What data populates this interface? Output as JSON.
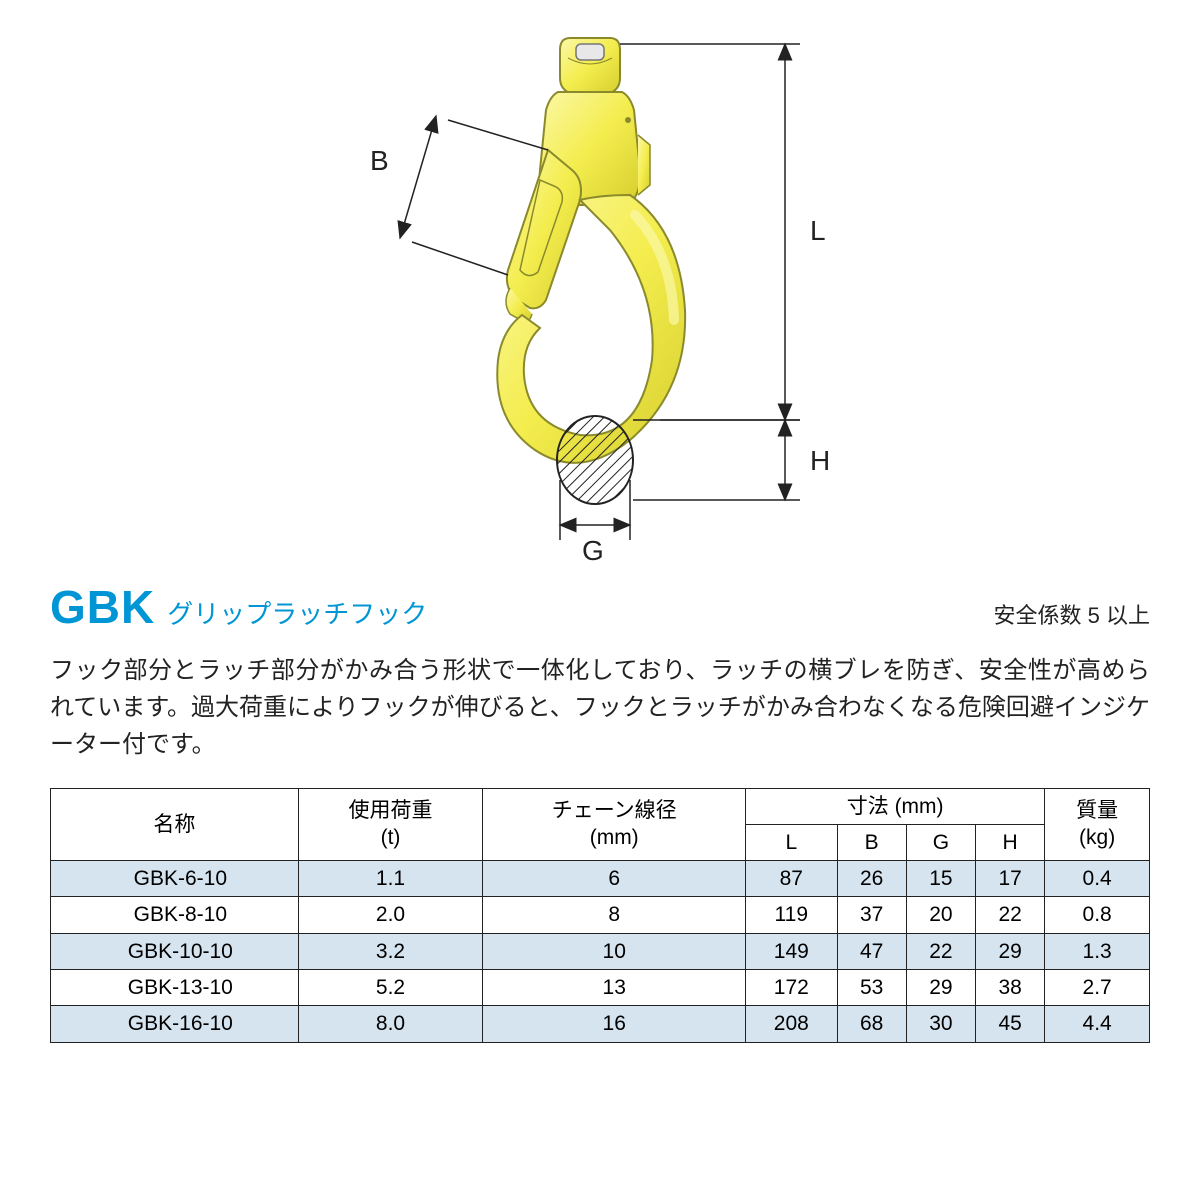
{
  "diagram": {
    "labels": {
      "B": "B",
      "L": "L",
      "H": "H",
      "G": "G"
    },
    "hook_fill": "#f4ed4e",
    "hook_stroke": "#8a8a2c",
    "hook_highlight": "#fbf8a8",
    "dimension_line_color": "#222222",
    "hatch_color": "#222222"
  },
  "title": {
    "code": "GBK",
    "name": "グリップラッチフック",
    "safety": "安全係数 5 以上"
  },
  "description": "フック部分とラッチ部分がかみ合う形状で一体化しており、ラッチの横ブレを防ぎ、安全性が高められています。過大荷重によりフックが伸びると、フックとラッチがかみ合わなくなる危険回避インジケーター付です。",
  "table": {
    "headers": {
      "name": "名称",
      "load": "使用荷重",
      "load_unit": "(t)",
      "chain": "チェーン線径",
      "chain_unit": "(mm)",
      "dim": "寸法 (mm)",
      "L": "L",
      "B": "B",
      "G": "G",
      "H": "H",
      "mass": "質量",
      "mass_unit": "(kg)"
    },
    "rows": [
      {
        "name": "GBK-6-10",
        "load": "1.1",
        "chain": "6",
        "L": "87",
        "B": "26",
        "G": "15",
        "H": "17",
        "mass": "0.4",
        "shaded": true
      },
      {
        "name": "GBK-8-10",
        "load": "2.0",
        "chain": "8",
        "L": "119",
        "B": "37",
        "G": "20",
        "H": "22",
        "mass": "0.8",
        "shaded": false
      },
      {
        "name": "GBK-10-10",
        "load": "3.2",
        "chain": "10",
        "L": "149",
        "B": "47",
        "G": "22",
        "H": "29",
        "mass": "1.3",
        "shaded": true
      },
      {
        "name": "GBK-13-10",
        "load": "5.2",
        "chain": "13",
        "L": "172",
        "B": "53",
        "G": "29",
        "H": "38",
        "mass": "2.7",
        "shaded": false
      },
      {
        "name": "GBK-16-10",
        "load": "8.0",
        "chain": "16",
        "L": "208",
        "B": "68",
        "G": "30",
        "H": "45",
        "mass": "4.4",
        "shaded": true
      }
    ]
  }
}
